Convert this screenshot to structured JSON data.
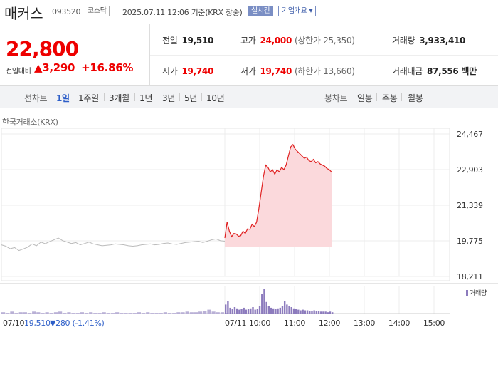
{
  "header": {
    "name": "매커스",
    "code": "093520",
    "market": "코스닥",
    "basetime": "2025.07.11 12:06 기준(KRX 장중)",
    "realtime_label": "실시간",
    "info_label": "기업개요 ▾"
  },
  "price": {
    "current": "22,800",
    "change_label": "전일대비",
    "change_value": "▲3,290",
    "change_pct": "+16.86%"
  },
  "stats": {
    "prev_close_label": "전일",
    "prev_close": "19,510",
    "high_label": "고가",
    "high": "24,000",
    "upper_limit": "(상한가 25,350)",
    "volume_label": "거래량",
    "volume": "3,933,410",
    "open_label": "시가",
    "open": "19,740",
    "low_label": "저가",
    "low": "19,740",
    "lower_limit": "(하한가 13,660)",
    "trade_value_label": "거래대금",
    "trade_value": "87,556 백만"
  },
  "tabs": {
    "line_label": "선차트",
    "line": [
      "1일",
      "1주일",
      "3개월",
      "1년",
      "3년",
      "5년",
      "10년"
    ],
    "active": "1일",
    "candle_label": "봉차트",
    "candle": [
      "일봉",
      "주봉",
      "월봉"
    ]
  },
  "chart_source": "한국거래소(KRX)",
  "chart_data": {
    "type": "area",
    "y_ticks": [
      "24,467",
      "22,903",
      "21,339",
      "19,775",
      "18,211"
    ],
    "ylim": [
      18211,
      24467
    ],
    "x_ticks": [
      "07/11",
      "10:00",
      "11:00",
      "12:00",
      "13:00",
      "14:00",
      "15:00"
    ],
    "baseline": 19510,
    "prev_day_series": [
      19600,
      19540,
      19430,
      19480,
      19350,
      19420,
      19500,
      19640,
      19560,
      19720,
      19650,
      19740,
      19820,
      19900,
      19780,
      19720,
      19660,
      19700,
      19600,
      19660,
      19720,
      19640,
      19600,
      19560,
      19580,
      19600,
      19640,
      19620,
      19600,
      19560,
      19540,
      19560,
      19600,
      19620,
      19640,
      19600,
      19620,
      19660,
      19680,
      19640,
      19620,
      19660,
      19700,
      19720,
      19740,
      19760,
      19700,
      19760,
      19820,
      19860,
      19780,
      19760
    ],
    "today_series": [
      19900,
      20600,
      20200,
      19960,
      20100,
      20080,
      19980,
      20000,
      20200,
      20100,
      20300,
      20280,
      20500,
      20400,
      20600,
      21200,
      21900,
      22600,
      23100,
      23000,
      22800,
      22900,
      22700,
      22900,
      22800,
      23000,
      22900,
      23100,
      23500,
      23900,
      24000,
      23800,
      23700,
      23600,
      23500,
      23400,
      23450,
      23300,
      23250,
      23350,
      23200,
      23250,
      23150,
      23100,
      23050,
      22950,
      22900,
      22800
    ],
    "volume_legend": "거래량",
    "prev_volume": [
      2,
      1,
      3,
      1,
      2,
      2,
      1,
      3,
      2,
      1,
      2,
      1,
      2,
      3,
      1,
      2,
      1,
      1,
      2,
      1,
      2,
      1,
      1,
      2,
      1,
      1,
      2,
      1,
      1,
      1,
      1,
      2,
      1,
      2,
      1,
      1,
      1,
      2,
      1,
      1,
      2,
      2,
      3,
      2,
      2,
      3,
      4,
      6,
      3,
      2,
      2,
      1
    ],
    "today_volume": [
      14,
      20,
      9,
      7,
      10,
      8,
      6,
      7,
      9,
      6,
      7,
      8,
      10,
      6,
      7,
      12,
      30,
      38,
      18,
      12,
      9,
      8,
      7,
      8,
      9,
      12,
      20,
      14,
      12,
      10,
      8,
      7,
      6,
      5,
      6,
      5,
      5,
      4,
      4,
      5,
      4,
      4,
      3,
      3,
      3,
      2,
      3,
      2
    ]
  },
  "footer": {
    "prev_date": "07/10",
    "prev_close": "19,510",
    "prev_change": "▼280 (-1.41%)"
  }
}
